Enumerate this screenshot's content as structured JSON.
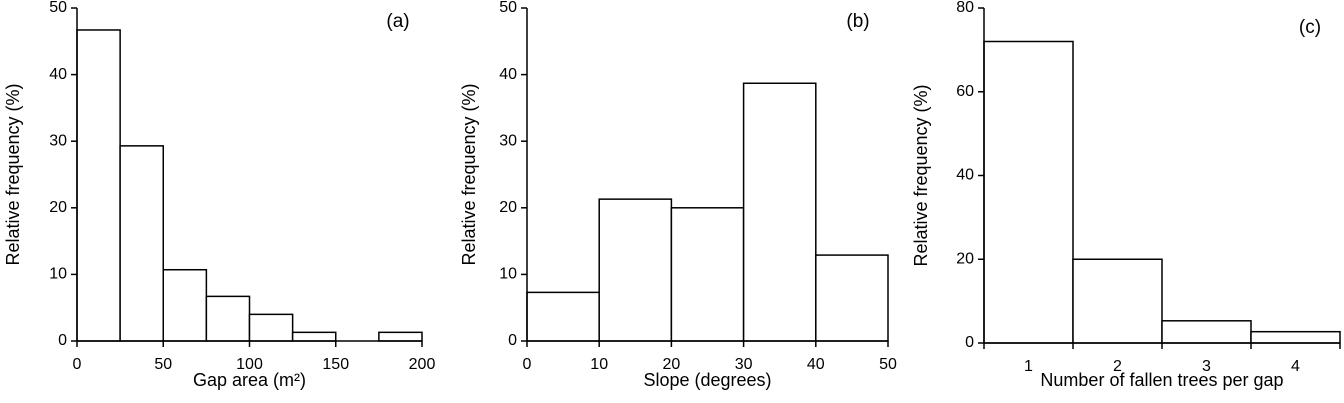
{
  "chart_data": [
    {
      "type": "histogram",
      "title": "(a)",
      "x_label": "Gap area (m²)",
      "y_label": "Relative frequency (%)",
      "bins": [
        0,
        25,
        50,
        75,
        100,
        125,
        150,
        175,
        200
      ],
      "values": [
        46.7,
        29.3,
        10.7,
        6.7,
        4.0,
        1.3,
        0,
        1.3
      ],
      "xlim": [
        0,
        200
      ],
      "xticks": [
        0,
        50,
        100,
        150,
        200
      ],
      "ylim": [
        0,
        50
      ],
      "yticks": [
        0,
        10,
        20,
        30,
        40,
        50
      ],
      "color": "#ffffff"
    },
    {
      "type": "histogram",
      "title": "(b)",
      "x_label": "Slope (degrees)",
      "y_label": "Relative frequency (%)",
      "bins": [
        0,
        10,
        20,
        30,
        40,
        50
      ],
      "values": [
        7.3,
        21.3,
        20.0,
        38.7,
        12.9
      ],
      "xlim": [
        0,
        50
      ],
      "xticks": [
        0,
        10,
        20,
        30,
        40,
        50
      ],
      "ylim": [
        0,
        50
      ],
      "yticks": [
        0,
        10,
        20,
        30,
        40,
        50
      ],
      "color": "#ffffff"
    },
    {
      "type": "bar",
      "title": "(c)",
      "x_label": "Number of fallen trees per gap",
      "y_label": "Relative frequency (%)",
      "categories": [
        "1",
        "2",
        "3",
        "4"
      ],
      "values": [
        72,
        20,
        5.3,
        2.7
      ],
      "ylim": [
        0,
        80
      ],
      "yticks": [
        0,
        20,
        40,
        60,
        80
      ],
      "color": "#ffffff"
    }
  ]
}
